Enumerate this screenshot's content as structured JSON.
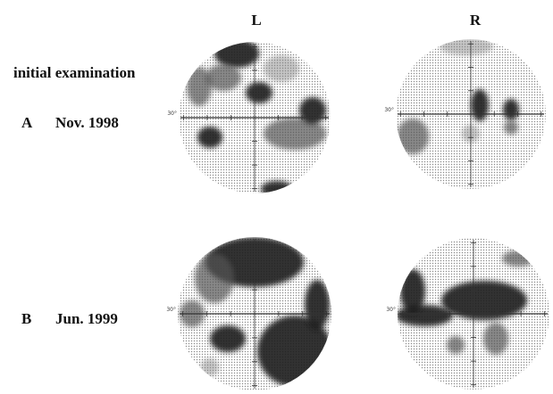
{
  "columns": [
    "L",
    "R"
  ],
  "rows": [
    {
      "note": "initial examination",
      "letter": "A",
      "date": "Nov. 1998"
    },
    {
      "letter": "B",
      "date": "Jun. 1999"
    }
  ],
  "axis_label": "30°"
}
